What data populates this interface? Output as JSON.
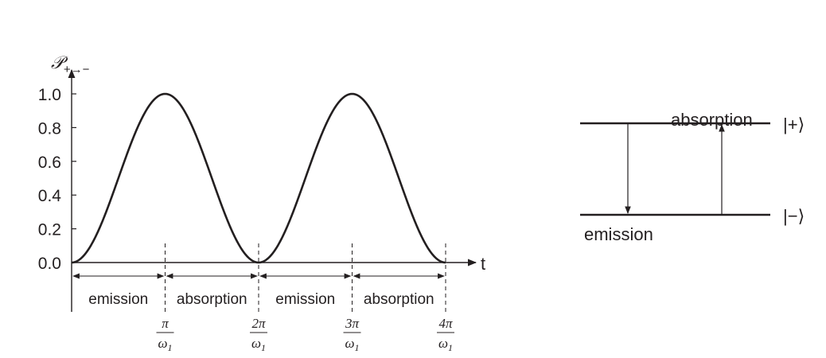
{
  "chart_data": {
    "type": "line",
    "title": "",
    "ylabel_main": "𝒫",
    "ylabel_sub": "+→−",
    "xlabel": "t",
    "ylim": [
      0,
      1.0
    ],
    "yticks": [
      "0.0",
      "0.2",
      "0.4",
      "0.6",
      "0.8",
      "1.0"
    ],
    "ytick_values": [
      0,
      0.2,
      0.4,
      0.6,
      0.8,
      1.0
    ],
    "xlim_over_pi_per_omega1": [
      0,
      4
    ],
    "xticks": [
      {
        "value": 1,
        "num": "π",
        "den": "ω1"
      },
      {
        "value": 2,
        "num": "2π",
        "den": "ω1"
      },
      {
        "value": 3,
        "num": "3π",
        "den": "ω1"
      },
      {
        "value": 4,
        "num": "4π",
        "den": "ω1"
      }
    ],
    "series": [
      {
        "formula": "sin^2(ω1 t / 2)",
        "x_unit": "π/ω1",
        "x": [
          0,
          0.25,
          0.5,
          0.75,
          1,
          1.25,
          1.5,
          1.75,
          2,
          2.25,
          2.5,
          2.75,
          3,
          3.25,
          3.5,
          3.75,
          4
        ],
        "y": [
          0,
          0.146,
          0.5,
          0.854,
          1,
          0.854,
          0.5,
          0.146,
          0,
          0.146,
          0.5,
          0.854,
          1,
          0.854,
          0.5,
          0.146,
          0
        ]
      }
    ],
    "segments": [
      {
        "from": 0,
        "to": 1,
        "label": "emission"
      },
      {
        "from": 1,
        "to": 2,
        "label": "absorption"
      },
      {
        "from": 2,
        "to": 3,
        "label": "emission"
      },
      {
        "from": 3,
        "to": 4,
        "label": "absorption"
      }
    ],
    "grid": false
  },
  "level_diagram": {
    "upper_state": "|+⟩",
    "lower_state": "|−⟩",
    "absorption_label": "absorption",
    "emission_label": "emission"
  }
}
